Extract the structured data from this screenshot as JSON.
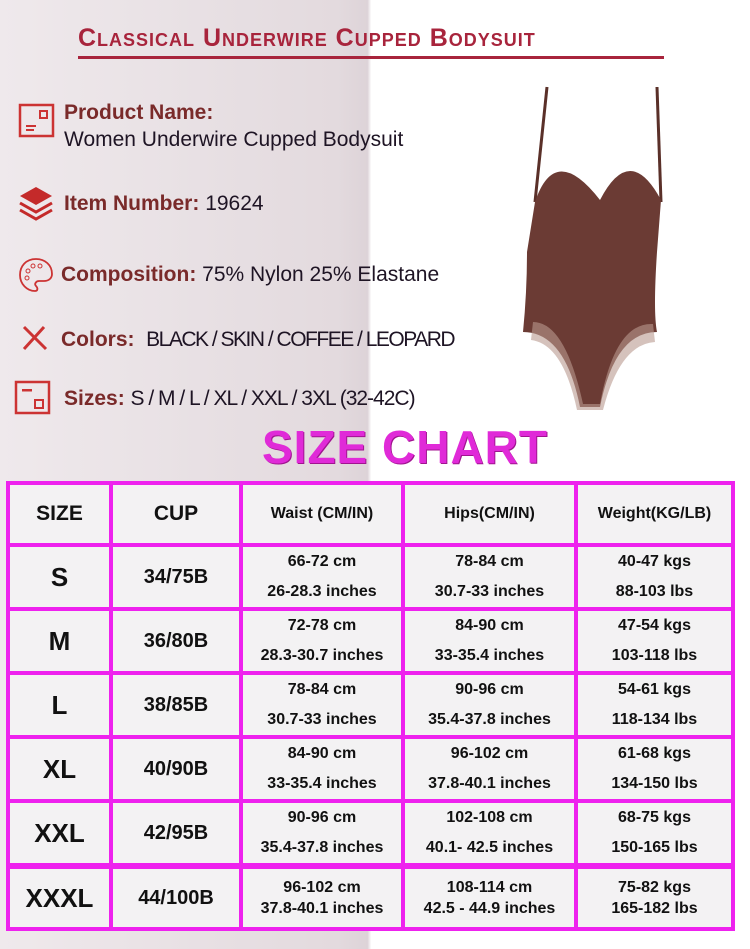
{
  "title": "Classical Underwire Cupped Bodysuit",
  "info": {
    "product_name_label": "Product Name:",
    "product_name": "Women Underwire Cupped Bodysuit",
    "item_number_label": "Item Number:",
    "item_number": "19624",
    "composition_label": "Composition:",
    "composition": "75% Nylon 25% Elastane",
    "colors_label": "Colors:",
    "colors": "BLACK / SKIN / COFFEE / LEOPARD",
    "sizes_label": "Sizes:",
    "sizes": "S / M / L / XL / XXL / 3XL (32-42C)"
  },
  "size_chart_title": "SIZE CHART",
  "colors_theme": {
    "title": "#a8243c",
    "border": "#ee22ee",
    "chart_title": "#e02ad8",
    "product": "#6b3b34"
  },
  "table": {
    "headers": [
      "SIZE",
      "CUP",
      "Waist (CM/IN)",
      "Hips(CM/IN)",
      "Weight(KG/LB)"
    ],
    "rows": [
      [
        "S",
        "34/75B",
        "66-72 cm",
        "26-28.3 inches",
        "78-84 cm",
        "30.7-33 inches",
        "40-47 kgs",
        "88-103 lbs"
      ],
      [
        "M",
        "36/80B",
        "72-78 cm",
        "28.3-30.7 inches",
        "84-90 cm",
        "33-35.4 inches",
        "47-54 kgs",
        "103-118 lbs"
      ],
      [
        "L",
        "38/85B",
        "78-84 cm",
        "30.7-33 inches",
        "90-96 cm",
        "35.4-37.8 inches",
        "54-61 kgs",
        "118-134 lbs"
      ],
      [
        "XL",
        "40/90B",
        "84-90 cm",
        "33-35.4 inches",
        "96-102 cm",
        "37.8-40.1 inches",
        "61-68 kgs",
        "134-150 lbs"
      ],
      [
        "XXL",
        "42/95B",
        "90-96 cm",
        "35.4-37.8 inches",
        "102-108 cm",
        "40.1- 42.5 inches",
        "68-75 kgs",
        "150-165 lbs"
      ],
      [
        "XXXL",
        "44/100B",
        "96-102 cm",
        "37.8-40.1 inches",
        "108-114 cm",
        "42.5 - 44.9 inches",
        "75-82 kgs",
        "165-182 lbs"
      ]
    ]
  }
}
